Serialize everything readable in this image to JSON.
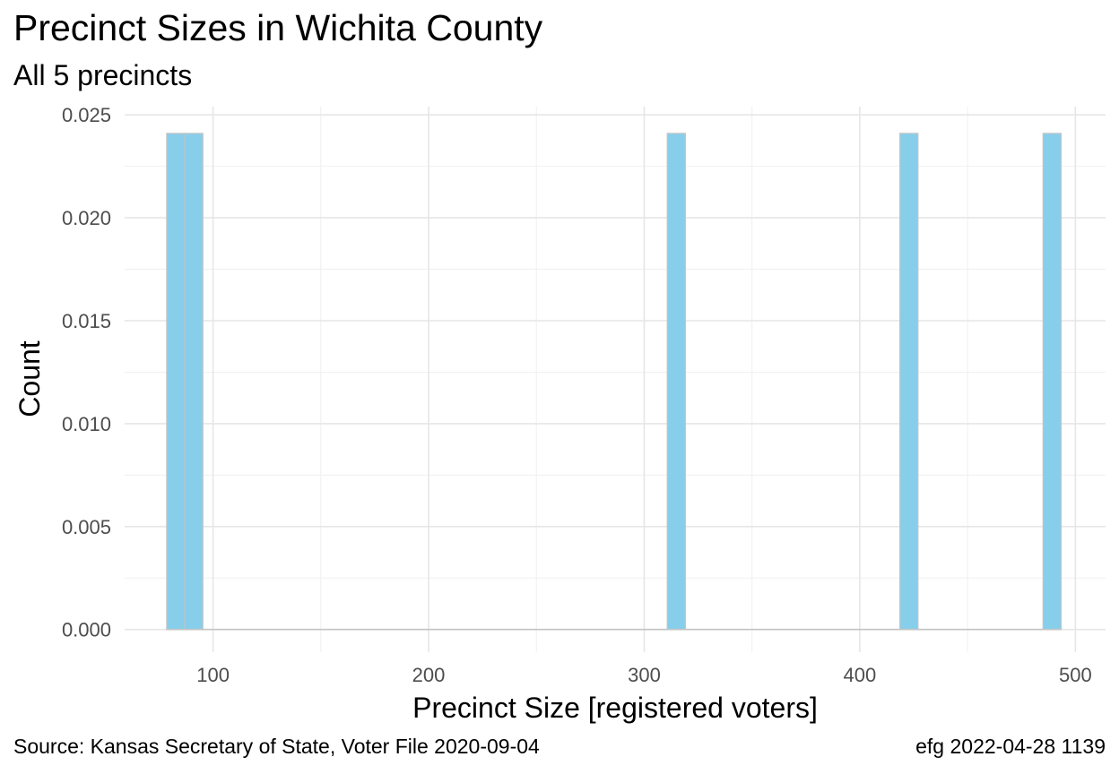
{
  "title": "Precinct Sizes in Wichita County",
  "subtitle": "All 5 precincts",
  "caption_left": "Source:  Kansas Secretary of State, Voter File  2020-09-04",
  "caption_right": "efg 2022-04-28 1139",
  "chart_data": {
    "type": "bar",
    "title": "Precinct Sizes in Wichita County",
    "subtitle": "All 5 precincts",
    "xlabel": "Precinct Size [registered voters]",
    "ylabel": "Count",
    "xlim": [
      59,
      514
    ],
    "ylim": [
      -0.0011,
      0.0254
    ],
    "x_ticks": [
      100,
      200,
      300,
      400,
      500
    ],
    "y_ticks": [
      0.0,
      0.005,
      0.01,
      0.015,
      0.02,
      0.025
    ],
    "y_tick_labels": [
      "0.000",
      "0.005",
      "0.010",
      "0.015",
      "0.020",
      "0.025"
    ],
    "bin_width": 8.4,
    "bins": [
      {
        "x_start": 78.5,
        "x_end": 86.9,
        "value": 0.0241
      },
      {
        "x_start": 86.9,
        "x_end": 95.3,
        "value": 0.0241
      },
      {
        "x_start": 310.7,
        "x_end": 319.1,
        "value": 0.0241
      },
      {
        "x_start": 418.6,
        "x_end": 427.0,
        "value": 0.0241
      },
      {
        "x_start": 485.0,
        "x_end": 493.4,
        "value": 0.0241
      }
    ],
    "bar_fill": "#87CEEB",
    "bar_stroke": "#C4C4C4",
    "grid": true
  }
}
